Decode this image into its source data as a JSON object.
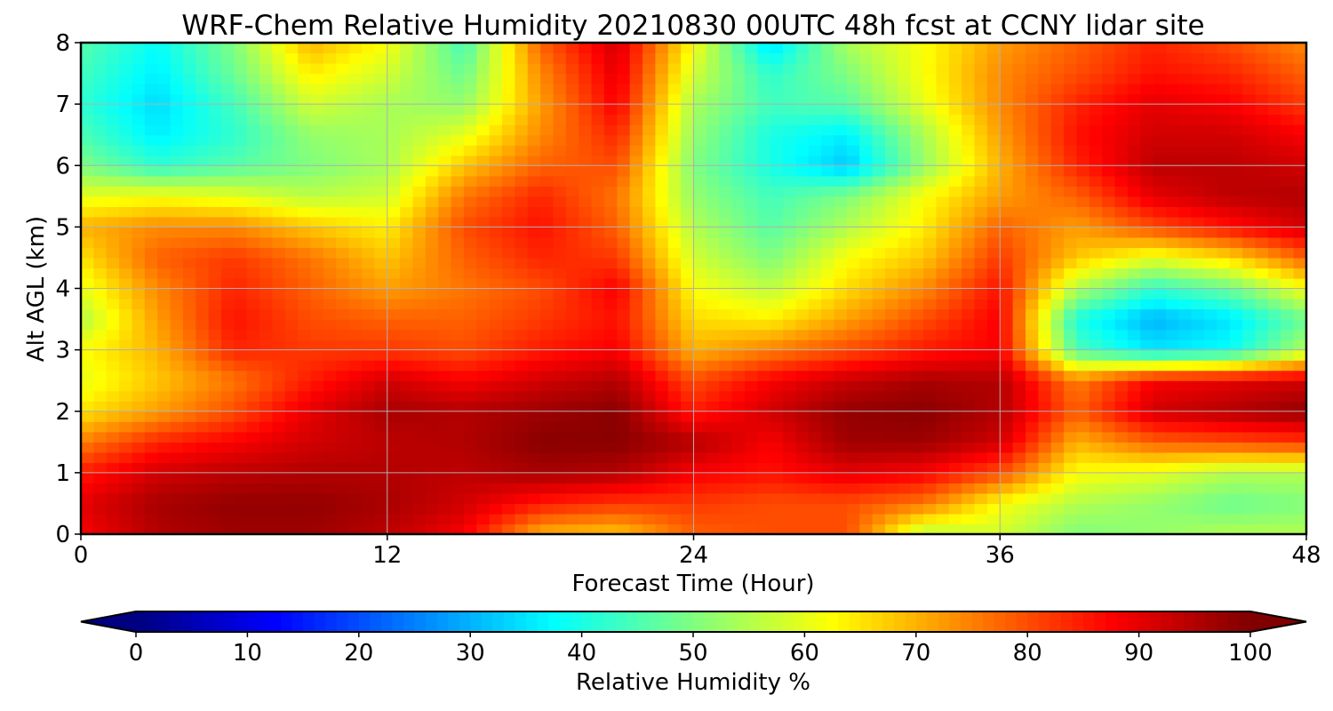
{
  "chart_data": {
    "type": "heatmap",
    "title": "WRF-Chem Relative Humidity 20210830 00UTC 48h fcst at CCNY lidar site",
    "xlabel": "Forecast Time (Hour)",
    "ylabel": "Alt AGL (km)",
    "xlim": [
      0,
      48
    ],
    "ylim": [
      0,
      8
    ],
    "xticks": [
      0,
      12,
      24,
      36,
      48
    ],
    "yticks": [
      0,
      1,
      2,
      3,
      4,
      5,
      6,
      7,
      8
    ],
    "grid": true,
    "colormap": "jet",
    "colorbar": {
      "label": "Relative Humidity %",
      "range": [
        0,
        100
      ],
      "ticks": [
        0,
        10,
        20,
        30,
        40,
        50,
        60,
        70,
        80,
        90,
        100
      ],
      "extend": "both",
      "placement": "bottom"
    },
    "x": [
      0,
      3,
      6,
      9,
      12,
      15,
      18,
      21,
      24,
      27,
      30,
      33,
      36,
      39,
      42,
      45,
      48
    ],
    "y": [
      0,
      0.5,
      1,
      1.5,
      2,
      2.5,
      3,
      3.5,
      4,
      4.5,
      5,
      5.5,
      6,
      6.5,
      7,
      7.5,
      8
    ],
    "z": [
      [
        88,
        95,
        97,
        97,
        94,
        88,
        70,
        68,
        78,
        80,
        80,
        55,
        58,
        50,
        52,
        55,
        55
      ],
      [
        90,
        96,
        98,
        98,
        96,
        92,
        85,
        82,
        82,
        80,
        80,
        76,
        62,
        55,
        52,
        48,
        50
      ],
      [
        85,
        92,
        94,
        95,
        95,
        94,
        96,
        95,
        88,
        86,
        90,
        88,
        80,
        62,
        60,
        55,
        55
      ],
      [
        75,
        84,
        88,
        92,
        94,
        95,
        99,
        99,
        95,
        88,
        97,
        97,
        92,
        70,
        78,
        80,
        82
      ],
      [
        65,
        72,
        80,
        90,
        96,
        95,
        97,
        99,
        85,
        92,
        98,
        99,
        95,
        78,
        92,
        95,
        98
      ],
      [
        60,
        68,
        76,
        85,
        92,
        88,
        92,
        95,
        80,
        88,
        93,
        96,
        95,
        75,
        88,
        90,
        92
      ],
      [
        62,
        70,
        84,
        82,
        82,
        80,
        85,
        88,
        70,
        75,
        80,
        85,
        88,
        45,
        35,
        38,
        55
      ],
      [
        55,
        72,
        86,
        80,
        78,
        78,
        82,
        86,
        66,
        64,
        72,
        80,
        88,
        40,
        30,
        35,
        48
      ],
      [
        60,
        74,
        84,
        78,
        72,
        76,
        80,
        88,
        62,
        56,
        66,
        74,
        86,
        55,
        42,
        48,
        62
      ],
      [
        65,
        78,
        82,
        76,
        68,
        78,
        84,
        82,
        58,
        50,
        62,
        68,
        82,
        68,
        60,
        66,
        78
      ],
      [
        70,
        74,
        74,
        68,
        64,
        80,
        86,
        78,
        55,
        46,
        55,
        64,
        78,
        72,
        80,
        86,
        92
      ],
      [
        60,
        62,
        60,
        56,
        58,
        76,
        84,
        76,
        52,
        44,
        50,
        62,
        72,
        78,
        90,
        94,
        95
      ],
      [
        50,
        42,
        46,
        50,
        54,
        68,
        78,
        80,
        50,
        40,
        32,
        52,
        70,
        84,
        94,
        94,
        92
      ],
      [
        45,
        36,
        42,
        52,
        54,
        60,
        74,
        84,
        52,
        40,
        36,
        54,
        72,
        86,
        92,
        92,
        88
      ],
      [
        42,
        34,
        44,
        58,
        54,
        52,
        72,
        88,
        54,
        44,
        46,
        60,
        74,
        84,
        90,
        88,
        82
      ],
      [
        44,
        36,
        48,
        64,
        58,
        48,
        74,
        90,
        58,
        42,
        50,
        62,
        74,
        80,
        86,
        84,
        78
      ],
      [
        46,
        38,
        50,
        70,
        62,
        44,
        78,
        92,
        62,
        34,
        54,
        62,
        72,
        78,
        84,
        80,
        74
      ]
    ]
  }
}
